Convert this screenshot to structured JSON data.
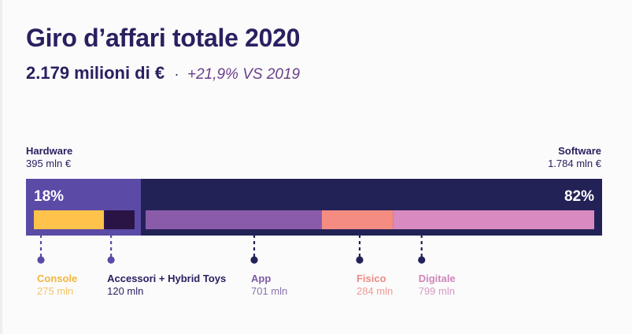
{
  "header": {
    "title": "Giro d’affari totale 2020",
    "total": "2.179 milioni di €",
    "separator": "·",
    "growth": "+21,9% VS 2019"
  },
  "chart_data": {
    "type": "bar",
    "orientation": "horizontal-stacked",
    "unit": "mln",
    "groups": [
      {
        "name": "Hardware",
        "value_label": "395 mln €",
        "share_label": "18%",
        "value": 395,
        "bg_color": "#5b4aa6",
        "segments": [
          {
            "name": "Console",
            "value": 275,
            "value_label": "275 mln",
            "color": "#ffc24a",
            "label_color": "#f3b53c",
            "value_color": "#f3c46a"
          },
          {
            "name": "Accessori + Hybrid Toys",
            "value": 120,
            "value_label": "120 mln",
            "color": "#2a1446",
            "label_color": "#2a2060",
            "value_color": "#2a2060"
          }
        ]
      },
      {
        "name": "Software",
        "value_label": "1.784 mln €",
        "share_label": "82%",
        "value": 1784,
        "bg_color": "#232257",
        "segments": [
          {
            "name": "App",
            "value": 701,
            "value_label": "701 mln",
            "color": "#8a5ba9",
            "label_color": "#7c5aa6",
            "value_color": "#8a72b0"
          },
          {
            "name": "Fisico",
            "value": 284,
            "value_label": "284 mln",
            "color": "#f48c82",
            "label_color": "#f08a86",
            "value_color": "#f29a94"
          },
          {
            "name": "Digitale",
            "value": 799,
            "value_label": "799 mln",
            "color": "#d98ac0",
            "label_color": "#cf85b8",
            "value_color": "#d59ac6"
          }
        ]
      }
    ]
  }
}
